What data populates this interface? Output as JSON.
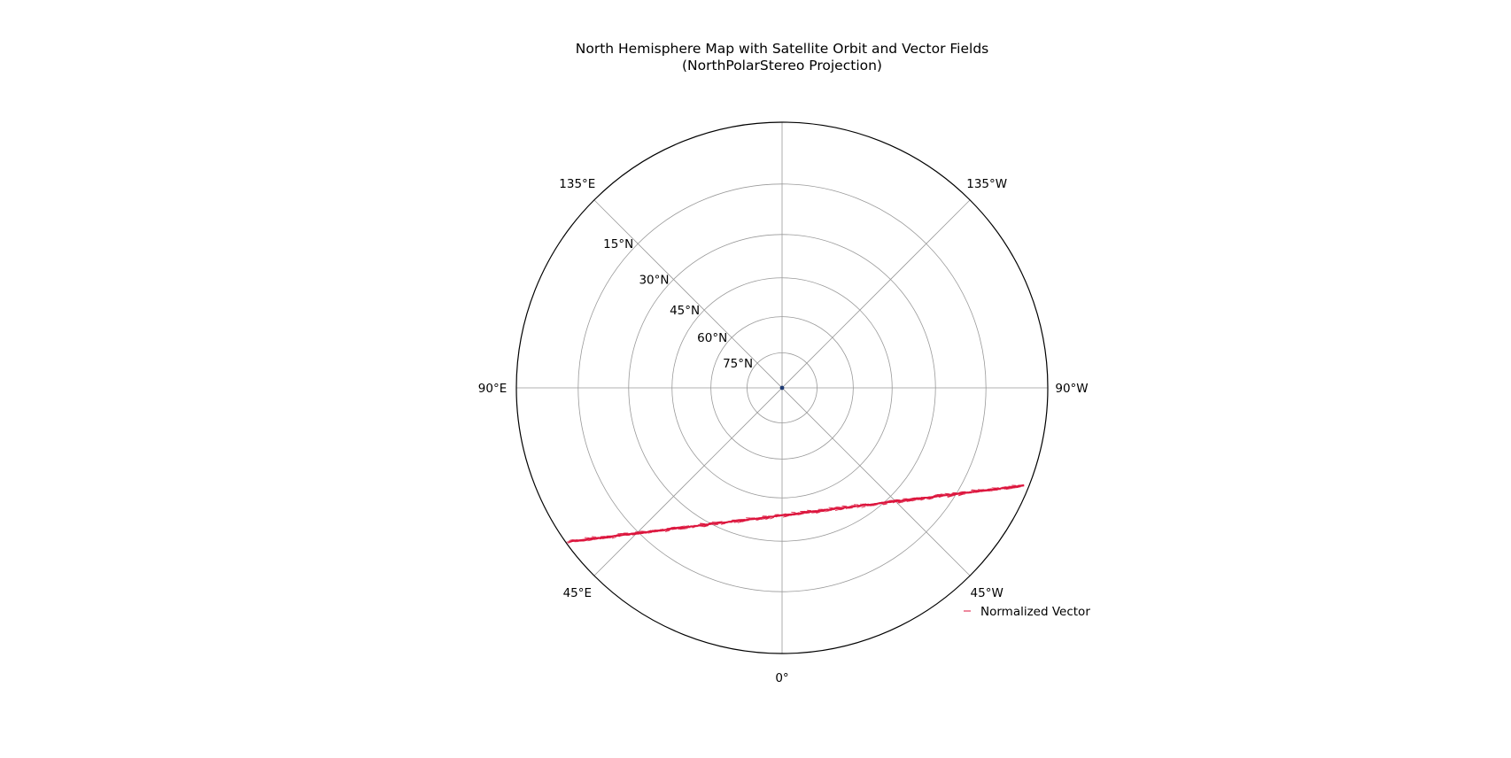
{
  "figure": {
    "title_line1": "North Hemisphere Map with Satellite Orbit and Vector Fields",
    "title_line2": "(NorthPolarStereo Projection)"
  },
  "map": {
    "projection": "NorthPolarStereo",
    "extent_lat_min": 0,
    "gridline_color": "#999999",
    "boundary_color": "#000000"
  },
  "longitude_labels": [
    {
      "lon": 180,
      "text": "0°"
    },
    {
      "lon": -135,
      "text": "45°E"
    },
    {
      "lon": -90,
      "text": "90°E"
    },
    {
      "lon": -45,
      "text": "135°E"
    },
    {
      "lon": 135,
      "text": "45°W"
    },
    {
      "lon": 90,
      "text": "90°W"
    },
    {
      "lon": 45,
      "text": "135°W"
    }
  ],
  "latitude_labels": [
    {
      "lat": 15,
      "text": "15°N"
    },
    {
      "lat": 30,
      "text": "30°N"
    },
    {
      "lat": 45,
      "text": "45°N"
    },
    {
      "lat": 60,
      "text": "60°N"
    },
    {
      "lat": 75,
      "text": "75°N"
    }
  ],
  "gridline_latitudes": [
    15,
    30,
    45,
    60,
    75
  ],
  "gridline_longitudes": [
    0,
    45,
    90,
    135
  ],
  "orbit": {
    "color": "#dc143c",
    "start": {
      "lat": 1,
      "lon": 112
    },
    "end": {
      "lat": 1,
      "lon": -126
    }
  },
  "vectors": {
    "color": "#dc143c",
    "legend_label": "Normalized Vector"
  },
  "chart_data": {
    "type": "map",
    "title": "North Hemisphere Map with Satellite Orbit and Vector Fields\n(NorthPolarStereo Projection)",
    "legend": [
      "Normalized Vector"
    ],
    "legend_placement": "lower-right",
    "grid": true
  }
}
